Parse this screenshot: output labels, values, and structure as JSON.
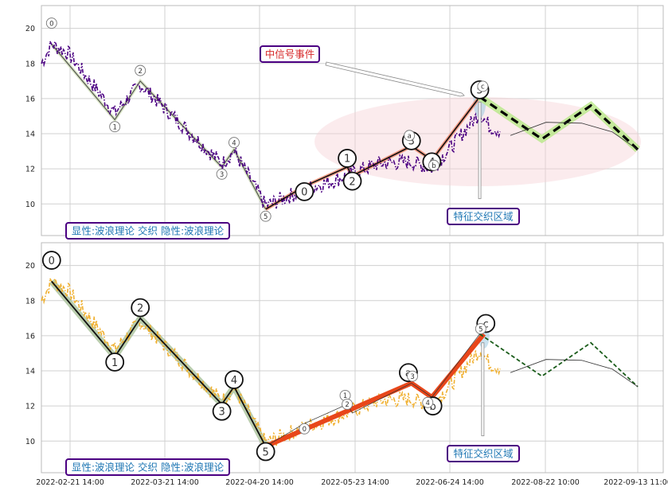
{
  "chart_data": {
    "type": "line",
    "x_ticks": [
      "2022-02-21 14:00",
      "2022-03-21 14:00",
      "2022-04-20 14:00",
      "2022-05-23 14:00",
      "2022-06-24 14:00",
      "2022-08-22 10:00",
      "2022-09-13 11:00"
    ],
    "panels": [
      {
        "ylim": [
          8.2,
          21.3
        ],
        "y_ticks": [
          10,
          12,
          14,
          16,
          18,
          20
        ],
        "legend_label": "显性:波浪理论 交织 隐性:波浪理论",
        "annotations": [
          {
            "text": "中信号事件",
            "color": "#d62728"
          },
          {
            "text": "特征交织区域",
            "color": "#1f77b4"
          }
        ],
        "wave_labels": [
          {
            "label": "0",
            "x": 1.0,
            "y": 20.3,
            "size": "small"
          },
          {
            "label": "1",
            "x": 7.2,
            "y": 14.4,
            "size": "small"
          },
          {
            "label": "2",
            "x": 9.7,
            "y": 17.6,
            "size": "small"
          },
          {
            "label": "3",
            "x": 17.7,
            "y": 11.7,
            "size": "small"
          },
          {
            "label": "4",
            "x": 18.9,
            "y": 13.5,
            "size": "small"
          },
          {
            "label": "5",
            "x": 22.0,
            "y": 9.3,
            "size": "small"
          },
          {
            "label": "0",
            "x": 25.8,
            "y": 10.7,
            "size": "large"
          },
          {
            "label": "1",
            "x": 30.0,
            "y": 12.6,
            "size": "large"
          },
          {
            "label": "2",
            "x": 30.5,
            "y": 11.3,
            "size": "large"
          },
          {
            "label": "3",
            "x": 36.3,
            "y": 13.6,
            "size": "large"
          },
          {
            "label": "a",
            "x": 36.1,
            "y": 13.9,
            "size": "small"
          },
          {
            "label": "4",
            "x": 38.3,
            "y": 12.4,
            "size": "large"
          },
          {
            "label": "b",
            "x": 38.5,
            "y": 12.2,
            "size": "small"
          },
          {
            "label": "5",
            "x": 43.0,
            "y": 16.5,
            "size": "large"
          },
          {
            "label": "c",
            "x": 43.3,
            "y": 16.7,
            "size": "small"
          }
        ]
      },
      {
        "ylim": [
          8.2,
          21.3
        ],
        "y_ticks": [
          10,
          12,
          14,
          16,
          18,
          20
        ],
        "legend_label": "显性:波浪理论 交织 隐性:波浪理论",
        "annotations": [
          {
            "text": "特征交织区域",
            "color": "#1f77b4"
          }
        ],
        "wave_labels": [
          {
            "label": "0",
            "x": 1.0,
            "y": 20.3,
            "size": "large"
          },
          {
            "label": "1",
            "x": 7.2,
            "y": 14.5,
            "size": "large"
          },
          {
            "label": "2",
            "x": 9.7,
            "y": 17.6,
            "size": "large"
          },
          {
            "label": "3",
            "x": 17.7,
            "y": 11.7,
            "size": "large"
          },
          {
            "label": "4",
            "x": 18.9,
            "y": 13.5,
            "size": "large"
          },
          {
            "label": "5",
            "x": 22.0,
            "y": 9.4,
            "size": "large"
          },
          {
            "label": "0",
            "x": 25.8,
            "y": 10.7,
            "size": "small"
          },
          {
            "label": "1",
            "x": 29.8,
            "y": 12.6,
            "size": "small"
          },
          {
            "label": "2",
            "x": 30.0,
            "y": 12.1,
            "size": "small"
          },
          {
            "label": "a",
            "x": 36.0,
            "y": 13.9,
            "size": "large"
          },
          {
            "label": "3",
            "x": 36.4,
            "y": 13.7,
            "size": "small"
          },
          {
            "label": "b",
            "x": 38.4,
            "y": 12.0,
            "size": "large"
          },
          {
            "label": "4",
            "x": 37.9,
            "y": 12.2,
            "size": "small"
          },
          {
            "label": "c",
            "x": 43.6,
            "y": 16.7,
            "size": "large"
          },
          {
            "label": "5",
            "x": 43.1,
            "y": 16.4,
            "size": "small"
          }
        ]
      }
    ],
    "series": [
      {
        "role": "price",
        "x_start": 0,
        "x_end": 45,
        "color_top": "#4b0082",
        "color_bottom": "#f0b030"
      },
      {
        "role": "wave-primary",
        "points": [
          [
            1.0,
            19.1
          ],
          [
            7.2,
            14.8
          ],
          [
            9.7,
            17.0
          ],
          [
            17.7,
            12.1
          ],
          [
            18.9,
            13.1
          ],
          [
            22.0,
            9.7
          ]
        ]
      },
      {
        "role": "wave-secondary",
        "points": [
          [
            22.0,
            9.7
          ],
          [
            25.8,
            11.0
          ],
          [
            30.0,
            12.1
          ],
          [
            30.5,
            11.6
          ],
          [
            36.3,
            13.3
          ],
          [
            38.3,
            12.5
          ],
          [
            43.0,
            16.1
          ]
        ]
      },
      {
        "role": "forecast",
        "points": [
          [
            43.0,
            16.1
          ],
          [
            49.1,
            13.7
          ],
          [
            53.9,
            15.6
          ],
          [
            58.5,
            13.1
          ]
        ]
      },
      {
        "role": "forecast-arc",
        "points": [
          [
            46.0,
            13.9
          ],
          [
            49.5,
            14.65
          ],
          [
            53.0,
            14.6
          ],
          [
            56.0,
            14.1
          ],
          [
            58.5,
            13.1
          ]
        ]
      }
    ]
  }
}
